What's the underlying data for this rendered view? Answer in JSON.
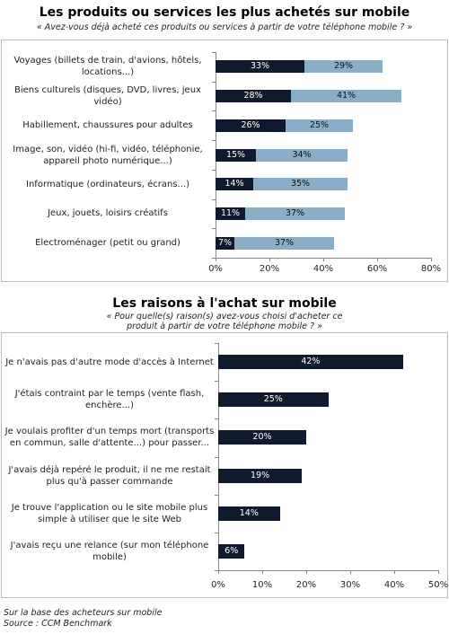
{
  "chart_data": [
    {
      "type": "stacked-bar-h",
      "title": "Les produits ou services les plus achetés sur mobile",
      "subtitle": "« Avez-vous déjà acheté ces produits ou services à partir de votre téléphone mobile ? »",
      "categories": [
        "Voyages (billets de train, d'avions, hôtels, locations...)",
        "Biens culturels (disques, DVD, livres, jeux vidéo)",
        "Habillement, chaussures pour adultes",
        "Image, son, vidéo (hi-fi, vidéo, téléphonie, appareil photo numérique...)",
        "Informatique (ordinateurs, écrans...)",
        "Jeux, jouets, loisirs créatifs",
        "Electroménager (petit ou grand)"
      ],
      "series": [
        {
          "color": "#0f1a2e",
          "values": [
            33,
            28,
            26,
            15,
            14,
            11,
            7
          ],
          "value_labels": [
            "33%",
            "28%",
            "26%",
            "15%",
            "14%",
            "11%",
            "7%"
          ]
        },
        {
          "color": "#8aaec8",
          "values": [
            29,
            41,
            25,
            34,
            35,
            37,
            37
          ],
          "value_labels": [
            "29%",
            "41%",
            "25%",
            "34%",
            "35%",
            "37%",
            "37%"
          ]
        }
      ],
      "xlim": [
        0,
        80
      ],
      "xticks": [
        {
          "value": 0,
          "label": "0%"
        },
        {
          "value": 20,
          "label": "20%"
        },
        {
          "value": 40,
          "label": "40%"
        },
        {
          "value": 60,
          "label": "60%"
        },
        {
          "value": 80,
          "label": "80%"
        }
      ]
    },
    {
      "type": "bar-h",
      "title": "Les raisons à l'achat sur mobile",
      "subtitle": "« Pour quelle(s) raison(s) avez-vous choisi d'acheter ce produit à partir de votre téléphone mobile ? »",
      "categories": [
        "Je n'avais pas d'autre mode d'accès à Internet",
        "J'étais contraint par le temps (vente flash, enchère...)",
        "Je voulais profiter d'un temps mort (transports en commun, salle d'attente...) pour passer...",
        "J'avais déjà repéré le produit, il ne me restait plus qu'à passer commande",
        "Je trouve l'application ou le site mobile plus simple à utiliser que le site Web",
        "J'avais reçu une relance (sur mon téléphone mobile)"
      ],
      "color": "#0f1a2e",
      "values": [
        42,
        25,
        20,
        19,
        14,
        6
      ],
      "value_labels": [
        "42%",
        "25%",
        "20%",
        "19%",
        "14%",
        "6%"
      ],
      "xlim": [
        0,
        50
      ],
      "xticks": [
        {
          "value": 0,
          "label": "0%"
        },
        {
          "value": 10,
          "label": "10%"
        },
        {
          "value": 20,
          "label": "20%"
        },
        {
          "value": 30,
          "label": "30%"
        },
        {
          "value": 40,
          "label": "40%"
        },
        {
          "value": 50,
          "label": "50%"
        }
      ]
    }
  ],
  "footnotes": [
    "Sur la base des acheteurs sur mobile",
    "Source : CCM Benchmark"
  ]
}
